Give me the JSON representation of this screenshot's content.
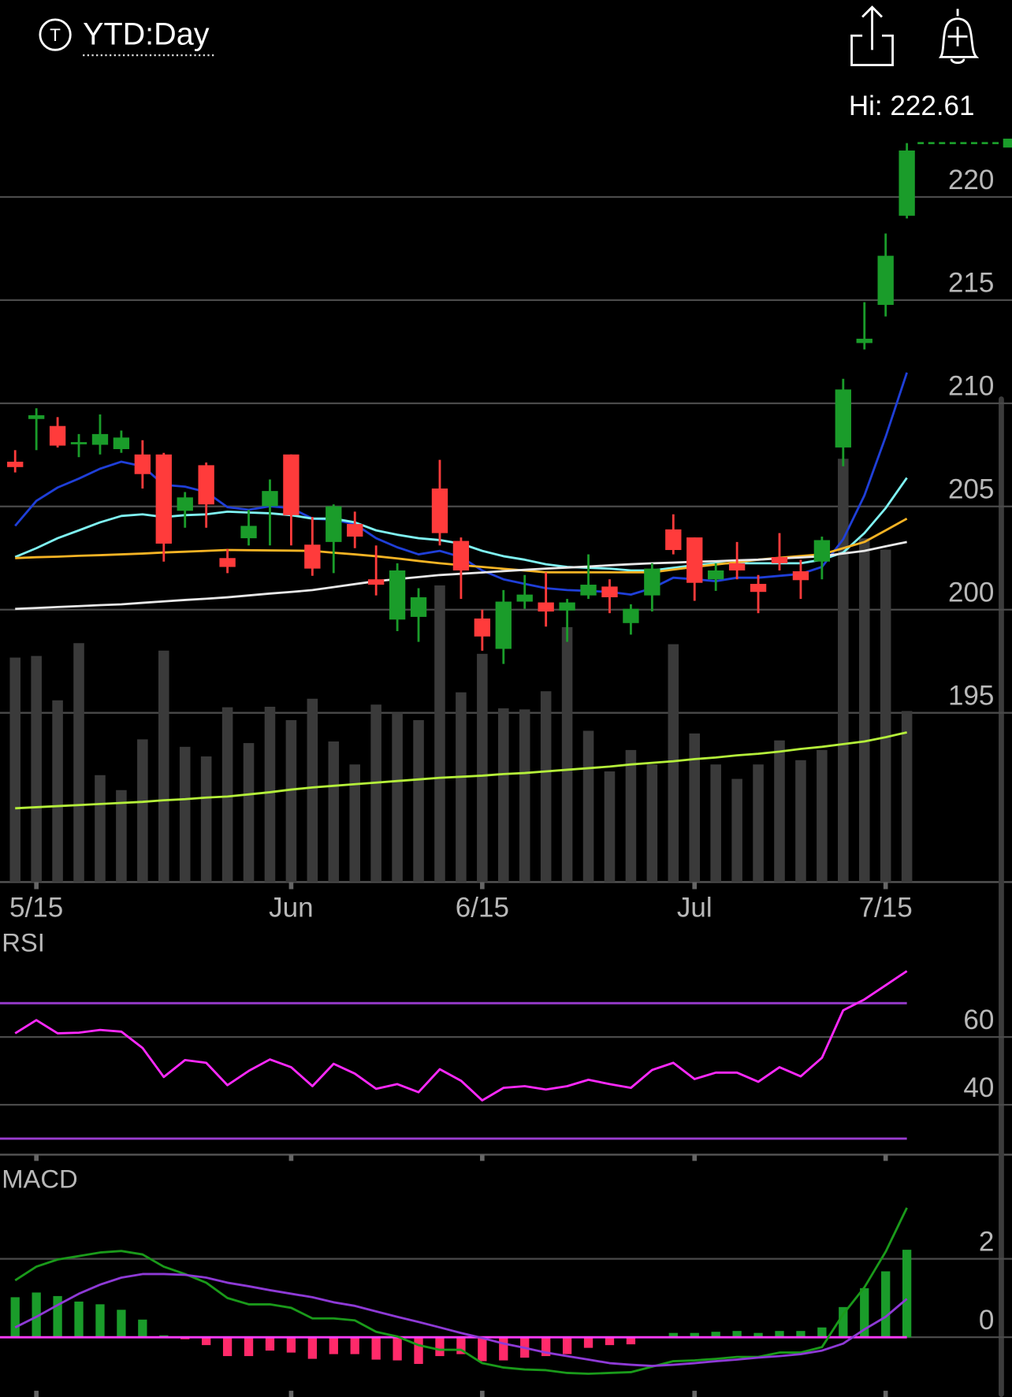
{
  "header": {
    "icon": "T",
    "period": "YTD:Day",
    "hi": "Hi: 222.61"
  },
  "chart_data": [
    {
      "type": "candlestick",
      "x": [
        "5/14",
        "5/15",
        "5/16",
        "5/17",
        "5/20",
        "5/21",
        "5/22",
        "5/23",
        "5/24",
        "5/28",
        "5/29",
        "5/30",
        "5/31",
        "6/3",
        "6/4",
        "6/5",
        "6/6",
        "6/7",
        "6/10",
        "6/11",
        "6/12",
        "6/13",
        "6/14",
        "6/17",
        "6/18",
        "6/20",
        "6/21",
        "6/24",
        "6/25",
        "6/26",
        "6/27",
        "6/28",
        "7/1",
        "7/2",
        "7/3",
        "7/5",
        "7/8",
        "7/9",
        "7/10",
        "7/11",
        "7/12",
        "7/15",
        "7/16"
      ],
      "open": [
        207.17,
        209.24,
        208.9,
        208.03,
        207.99,
        207.78,
        207.52,
        207.52,
        204.79,
        207.0,
        202.5,
        203.46,
        205.01,
        207.52,
        203.15,
        203.28,
        204.15,
        201.47,
        199.52,
        199.65,
        205.87,
        203.33,
        199.57,
        198.1,
        200.39,
        200.35,
        199.96,
        200.69,
        201.12,
        199.35,
        200.69,
        203.89,
        203.5,
        201.47,
        202.25,
        201.25,
        202.55,
        201.86,
        202.33,
        207.86,
        212.92,
        214.77,
        219.09
      ],
      "high": [
        207.73,
        209.76,
        209.33,
        208.51,
        209.46,
        208.68,
        208.21,
        207.6,
        205.7,
        207.13,
        202.94,
        204.84,
        206.31,
        207.52,
        204.49,
        205.1,
        204.75,
        203.11,
        202.25,
        201.04,
        207.26,
        203.5,
        200.0,
        200.95,
        201.68,
        201.81,
        200.52,
        202.68,
        201.47,
        200.26,
        202.25,
        204.62,
        203.5,
        202.25,
        203.28,
        201.68,
        203.71,
        202.42,
        203.54,
        211.19,
        214.9,
        218.23,
        222.61
      ],
      "low": [
        206.65,
        207.73,
        207.86,
        207.39,
        207.52,
        207.6,
        205.87,
        202.33,
        203.97,
        203.97,
        201.77,
        203.11,
        203.11,
        203.11,
        201.64,
        201.77,
        202.98,
        200.69,
        198.96,
        198.44,
        203.11,
        200.52,
        198.01,
        197.37,
        200.04,
        199.18,
        198.44,
        200.52,
        199.83,
        198.79,
        199.91,
        202.68,
        200.43,
        200.91,
        201.47,
        199.83,
        201.9,
        200.52,
        201.47,
        206.95,
        212.61,
        214.21,
        218.96
      ],
      "close": [
        206.91,
        209.42,
        207.95,
        208.12,
        208.51,
        208.34,
        206.57,
        203.2,
        205.44,
        205.1,
        202.07,
        204.06,
        205.75,
        204.58,
        201.99,
        205.01,
        203.54,
        201.21,
        201.9,
        200.6,
        203.71,
        201.9,
        198.7,
        200.39,
        200.73,
        199.91,
        200.35,
        201.21,
        200.6,
        200.04,
        201.99,
        202.89,
        201.3,
        201.9,
        201.9,
        200.86,
        202.25,
        201.43,
        203.37,
        210.67,
        213.13,
        217.15,
        222.25
      ],
      "up_color": "#1a9c2a",
      "down_color": "#ff3b3b",
      "series": [
        {
          "color": "#1f3fd8",
          "values": [
            204.06,
            205.27,
            205.92,
            206.35,
            206.83,
            207.17,
            206.95,
            206.05,
            205.96,
            205.7,
            204.97,
            204.84,
            205.01,
            204.92,
            204.41,
            204.36,
            204.15,
            203.46,
            203.02,
            202.68,
            202.85,
            202.55,
            201.9,
            201.47,
            201.25,
            201.04,
            200.95,
            200.91,
            200.86,
            200.73,
            201.04,
            201.55,
            201.47,
            201.38,
            201.55,
            201.55,
            201.64,
            201.73,
            202.07,
            203.41,
            205.53,
            208.38,
            211.49
          ]
        },
        {
          "color": "#7ff3f3",
          "values": [
            202.55,
            202.98,
            203.46,
            203.84,
            204.23,
            204.54,
            204.62,
            204.49,
            204.58,
            204.62,
            204.75,
            204.71,
            204.67,
            204.58,
            204.41,
            204.41,
            204.23,
            203.84,
            203.63,
            203.46,
            203.37,
            203.2,
            202.85,
            202.59,
            202.42,
            202.2,
            202.07,
            202.03,
            201.99,
            201.9,
            201.9,
            202.03,
            202.16,
            202.25,
            202.25,
            202.25,
            202.25,
            202.25,
            202.42,
            202.77,
            203.71,
            204.92,
            206.39
          ]
        },
        {
          "color": "#f5b324",
          "values": [
            202.5,
            202.54,
            202.57,
            202.61,
            202.64,
            202.68,
            202.72,
            202.77,
            202.81,
            202.85,
            202.89,
            202.88,
            202.87,
            202.86,
            202.85,
            202.76,
            202.68,
            202.59,
            202.48,
            202.36,
            202.25,
            202.16,
            202.07,
            201.98,
            201.9,
            201.81,
            201.81,
            201.81,
            201.81,
            201.81,
            201.81,
            201.94,
            202.07,
            202.19,
            202.3,
            202.42,
            202.51,
            202.6,
            202.68,
            202.98,
            203.28,
            203.84,
            204.41
          ]
        },
        {
          "color": "#e8e8e8",
          "values": [
            200.04,
            200.08,
            200.13,
            200.17,
            200.22,
            200.26,
            200.33,
            200.4,
            200.47,
            200.53,
            200.6,
            200.69,
            200.78,
            200.86,
            200.95,
            201.09,
            201.24,
            201.38,
            201.48,
            201.58,
            201.68,
            201.74,
            201.8,
            201.87,
            201.93,
            201.99,
            202.04,
            202.09,
            202.15,
            202.2,
            202.25,
            202.28,
            202.32,
            202.35,
            202.39,
            202.42,
            202.48,
            202.53,
            202.59,
            202.72,
            202.85,
            203.07,
            203.28
          ]
        }
      ],
      "volume": [
        42.0,
        42.3,
        34.0,
        44.7,
        20.0,
        17.2,
        26.7,
        43.3,
        25.3,
        23.5,
        32.7,
        26.0,
        32.8,
        30.3,
        34.3,
        26.3,
        22.0,
        33.2,
        31.7,
        30.3,
        55.5,
        35.5,
        42.7,
        32.5,
        32.3,
        35.7,
        47.7,
        28.3,
        20.7,
        24.7,
        22.0,
        44.5,
        27.8,
        22.0,
        19.3,
        22.0,
        26.5,
        22.8,
        24.7,
        79.2,
        64.3,
        62.2,
        32.0
      ],
      "volume_color": "#3a3a3a",
      "volume_ma": [
        13.8,
        14.0,
        14.2,
        14.4,
        14.6,
        14.8,
        15.0,
        15.3,
        15.5,
        15.8,
        16.0,
        16.4,
        16.8,
        17.3,
        17.7,
        18.0,
        18.3,
        18.6,
        18.9,
        19.2,
        19.5,
        19.7,
        19.9,
        20.2,
        20.4,
        20.7,
        21.0,
        21.3,
        21.6,
        22.0,
        22.3,
        22.6,
        23.0,
        23.3,
        23.7,
        24.0,
        24.4,
        24.9,
        25.3,
        25.8,
        26.3,
        27.1,
        28.0
      ],
      "volume_ma_color": "#b5f03a",
      "volume_ylim": [
        0,
        141.7
      ],
      "ylim": [
        186.8,
        223.5
      ],
      "yticks": [
        195,
        200,
        205,
        210,
        215,
        220
      ],
      "xticks": [
        {
          "value": "5/15",
          "label": "5/15"
        },
        {
          "value": "6/3",
          "label": "Jun"
        },
        {
          "value": "6/14",
          "label": "6/15"
        },
        {
          "value": "7/1",
          "label": "Jul"
        },
        {
          "value": "7/15",
          "label": "7/15"
        }
      ],
      "grid": true
    },
    {
      "type": "line",
      "title": "RSI",
      "series": [
        {
          "color": "#ff29ff",
          "values": [
            61.1,
            65.0,
            61.1,
            61.3,
            62.1,
            61.6,
            56.8,
            48.2,
            53.2,
            52.4,
            45.8,
            50.0,
            53.4,
            51.1,
            45.5,
            52.1,
            49.2,
            44.7,
            46.1,
            43.7,
            50.5,
            47.1,
            41.3,
            45.0,
            45.5,
            44.5,
            45.5,
            47.4,
            46.1,
            45.0,
            50.3,
            52.4,
            47.6,
            49.5,
            49.5,
            46.8,
            51.1,
            48.4,
            53.9,
            67.9,
            71.1,
            75.3,
            79.5
          ]
        }
      ],
      "levels": [
        70,
        30
      ],
      "level_color": "#9a3ccf",
      "ylim": [
        25,
        85
      ],
      "yticks": [
        40,
        60
      ],
      "grid": true
    },
    {
      "type": "macd",
      "title": "MACD",
      "histogram": [
        1.02,
        1.14,
        1.05,
        0.91,
        0.84,
        0.7,
        0.45,
        0.05,
        -0.05,
        -0.2,
        -0.48,
        -0.48,
        -0.34,
        -0.39,
        -0.55,
        -0.43,
        -0.43,
        -0.57,
        -0.59,
        -0.68,
        -0.48,
        -0.43,
        -0.61,
        -0.59,
        -0.52,
        -0.48,
        -0.43,
        -0.27,
        -0.2,
        -0.18,
        -0.02,
        0.11,
        0.11,
        0.14,
        0.16,
        0.11,
        0.16,
        0.16,
        0.25,
        0.77,
        1.25,
        1.68,
        2.23
      ],
      "up_color": "#1a9c2a",
      "down_color": "#ff2a6a",
      "baseline_color": "#ff3cff",
      "series": [
        {
          "color": "#1a9a1a",
          "values": [
            1.45,
            1.8,
            1.98,
            2.07,
            2.16,
            2.2,
            2.11,
            1.8,
            1.61,
            1.39,
            1.0,
            0.84,
            0.84,
            0.75,
            0.48,
            0.48,
            0.43,
            0.14,
            0.02,
            -0.2,
            -0.32,
            -0.32,
            -0.66,
            -0.77,
            -0.82,
            -0.84,
            -0.91,
            -0.93,
            -0.91,
            -0.89,
            -0.75,
            -0.61,
            -0.59,
            -0.55,
            -0.5,
            -0.5,
            -0.39,
            -0.39,
            -0.25,
            0.59,
            1.27,
            2.18,
            3.3
          ]
        },
        {
          "color": "#8e3ad6",
          "values": [
            0.25,
            0.52,
            0.82,
            1.11,
            1.34,
            1.52,
            1.61,
            1.61,
            1.59,
            1.52,
            1.39,
            1.3,
            1.2,
            1.11,
            1.02,
            0.89,
            0.8,
            0.66,
            0.52,
            0.39,
            0.25,
            0.11,
            -0.02,
            -0.16,
            -0.27,
            -0.39,
            -0.48,
            -0.57,
            -0.66,
            -0.7,
            -0.73,
            -0.7,
            -0.66,
            -0.61,
            -0.57,
            -0.52,
            -0.48,
            -0.43,
            -0.34,
            -0.16,
            0.2,
            0.52,
            0.98
          ]
        }
      ],
      "ylim": [
        -1.5,
        3.7
      ],
      "yticks": [
        0,
        2
      ],
      "grid": true
    }
  ]
}
